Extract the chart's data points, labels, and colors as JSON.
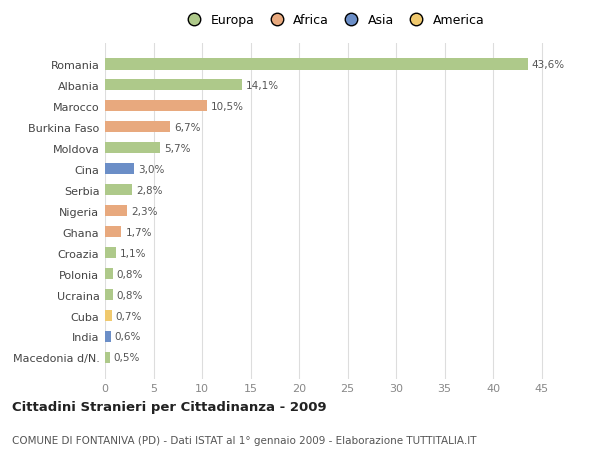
{
  "categories": [
    "Romania",
    "Albania",
    "Marocco",
    "Burkina Faso",
    "Moldova",
    "Cina",
    "Serbia",
    "Nigeria",
    "Ghana",
    "Croazia",
    "Polonia",
    "Ucraina",
    "Cuba",
    "India",
    "Macedonia d/N."
  ],
  "values": [
    43.6,
    14.1,
    10.5,
    6.7,
    5.7,
    3.0,
    2.8,
    2.3,
    1.7,
    1.1,
    0.8,
    0.8,
    0.7,
    0.6,
    0.5
  ],
  "labels": [
    "43,6%",
    "14,1%",
    "10,5%",
    "6,7%",
    "5,7%",
    "3,0%",
    "2,8%",
    "2,3%",
    "1,7%",
    "1,1%",
    "0,8%",
    "0,8%",
    "0,7%",
    "0,6%",
    "0,5%"
  ],
  "colors": [
    "#aec98a",
    "#aec98a",
    "#e8a97e",
    "#e8a97e",
    "#aec98a",
    "#6b8ec7",
    "#aec98a",
    "#e8a97e",
    "#e8a97e",
    "#aec98a",
    "#aec98a",
    "#aec98a",
    "#f0c96e",
    "#6b8ec7",
    "#aec98a"
  ],
  "legend_labels": [
    "Europa",
    "Africa",
    "Asia",
    "America"
  ],
  "legend_colors": [
    "#aec98a",
    "#e8a97e",
    "#6b8ec7",
    "#f0c96e"
  ],
  "title": "Cittadini Stranieri per Cittadinanza - 2009",
  "subtitle": "COMUNE DI FONTANIVA (PD) - Dati ISTAT al 1° gennaio 2009 - Elaborazione TUTTITALIA.IT",
  "xlim": [
    0,
    47
  ],
  "xticks": [
    0,
    5,
    10,
    15,
    20,
    25,
    30,
    35,
    40,
    45
  ],
  "bg_color": "#ffffff",
  "grid_color": "#dddddd",
  "bar_height": 0.55
}
